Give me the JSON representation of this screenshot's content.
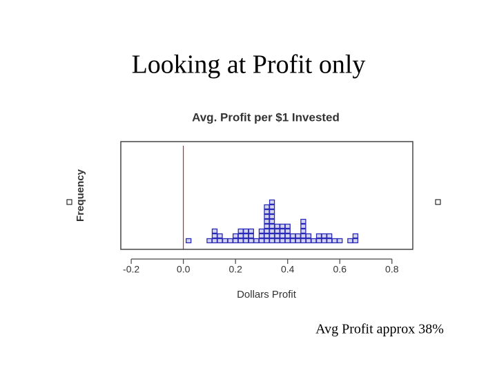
{
  "slide_title": "Looking at Profit only",
  "note": "Avg Profit approx 38%",
  "chart_data": {
    "type": "dotplot",
    "title": "Avg. Profit per $1 Invested",
    "xlabel": "Dollars Profit",
    "ylabel": "Frequency",
    "x": [
      0.02,
      0.1,
      0.12,
      0.14,
      0.16,
      0.18,
      0.2,
      0.22,
      0.24,
      0.26,
      0.28,
      0.3,
      0.32,
      0.34,
      0.36,
      0.38,
      0.4,
      0.42,
      0.44,
      0.46,
      0.48,
      0.5,
      0.52,
      0.54,
      0.56,
      0.58,
      0.6,
      0.64,
      0.66
    ],
    "values": [
      1,
      1,
      3,
      2,
      1,
      1,
      2,
      3,
      3,
      3,
      1,
      3,
      8,
      9,
      4,
      4,
      4,
      2,
      2,
      5,
      2,
      1,
      2,
      2,
      2,
      1,
      1,
      1,
      2
    ],
    "color": "#2a2ab8",
    "xlim": [
      -0.24,
      0.88
    ],
    "ylim": [
      0,
      20
    ],
    "xticks": [
      -0.2,
      {
        "value": 0,
        "label": "0.0"
      },
      0.2,
      0.4,
      0.6,
      0.8
    ],
    "reference_line": {
      "value": 0,
      "color": "#c00000"
    }
  }
}
